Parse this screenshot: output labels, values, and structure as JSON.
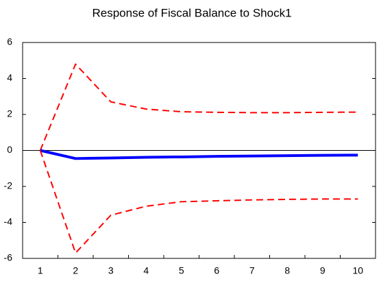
{
  "chart_data": {
    "type": "line",
    "title": "Response of Fiscal Balance to Shock1",
    "categories": [
      1,
      2,
      3,
      4,
      5,
      6,
      7,
      8,
      9,
      10
    ],
    "series": [
      {
        "color": "#ff0000",
        "dash": true,
        "values": [
          0,
          4.8,
          2.7,
          2.3,
          2.15,
          2.12,
          2.1,
          2.1,
          2.12,
          2.13
        ]
      },
      {
        "color": "#0000ff",
        "dash": false,
        "values": [
          0,
          -0.45,
          -0.42,
          -0.38,
          -0.36,
          -0.33,
          -0.31,
          -0.29,
          -0.27,
          -0.26
        ]
      },
      {
        "color": "#ff0000",
        "dash": true,
        "values": [
          0,
          -5.7,
          -3.6,
          -3.1,
          -2.85,
          -2.8,
          -2.75,
          -2.72,
          -2.7,
          -2.7
        ]
      }
    ],
    "ylim": [
      -6,
      6
    ],
    "yticks": [
      -6,
      -4,
      -2,
      0,
      2,
      4,
      6
    ],
    "zero_line": true,
    "grid": false
  }
}
